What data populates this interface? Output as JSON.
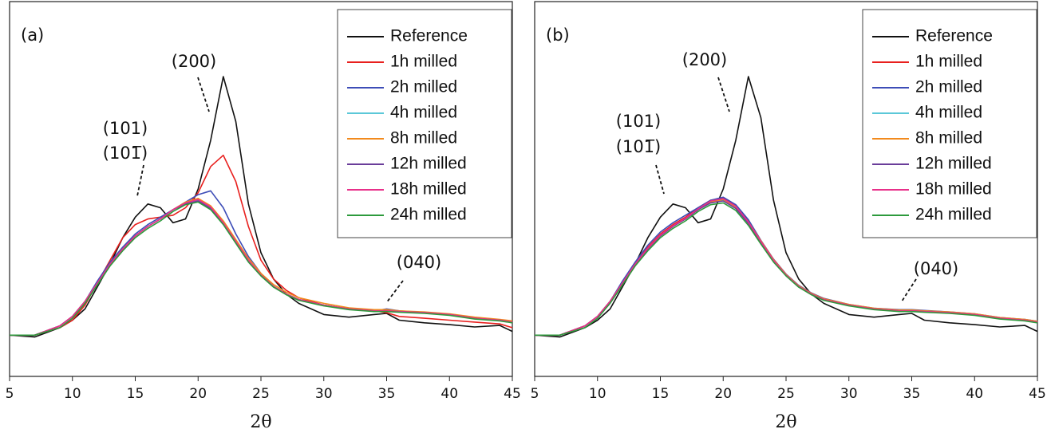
{
  "chart_data": [
    {
      "type": "line",
      "panel_label": "(a)",
      "xlabel": "2θ",
      "xlim": [
        5,
        45
      ],
      "xticks": [
        5,
        10,
        15,
        20,
        25,
        30,
        35,
        40,
        45
      ],
      "ylim": [
        0,
        100
      ],
      "legend": "upper right",
      "annotations": [
        "(200)",
        "(101)",
        "(101̅)",
        "(040)"
      ],
      "x": [
        5,
        7,
        9,
        10,
        11,
        12,
        13,
        14,
        15,
        16,
        17,
        18,
        19,
        20,
        21,
        22,
        23,
        24,
        25,
        26,
        27,
        28,
        30,
        32,
        34,
        35,
        36,
        38,
        40,
        42,
        44,
        45
      ],
      "series": [
        {
          "name": "Reference",
          "color": "#111111",
          "values": [
            11,
            10.5,
            13,
            15,
            18,
            24,
            30,
            37,
            42.5,
            46,
            45,
            41,
            42,
            50,
            63,
            80,
            68,
            46,
            33,
            26,
            22,
            19.5,
            16.5,
            15.8,
            16.5,
            16.8,
            15,
            14.3,
            13.8,
            13.2,
            13.6,
            12
          ]
        },
        {
          "name": "1h milled",
          "color": "#e8201e",
          "values": [
            11,
            11,
            13,
            15,
            19,
            25,
            31,
            37,
            40.5,
            42,
            42.5,
            43,
            45,
            49,
            56,
            59,
            52,
            40,
            31,
            26,
            23,
            21,
            19,
            18,
            17.5,
            17,
            16,
            15.5,
            15,
            14.5,
            14,
            13
          ]
        },
        {
          "name": "2h milled",
          "color": "#3d4db7",
          "values": [
            11,
            11,
            13.5,
            16,
            20,
            25.5,
            30.5,
            34.5,
            38,
            40.5,
            42.5,
            44.5,
            46.5,
            48.5,
            49.5,
            45,
            38,
            32,
            27.5,
            24,
            22,
            20.5,
            19,
            18,
            17.5,
            18,
            17.5,
            17,
            16.5,
            15.5,
            15,
            14.5
          ]
        },
        {
          "name": "4h milled",
          "color": "#5bc8d8",
          "values": [
            11,
            11,
            13.5,
            16,
            20,
            25,
            30,
            34,
            37.5,
            40,
            42,
            44.5,
            46,
            47,
            45,
            41,
            36,
            31,
            27,
            24,
            22,
            20.5,
            19,
            18,
            17.5,
            17.5,
            17.3,
            17,
            16.5,
            15.5,
            15,
            14.5
          ]
        },
        {
          "name": "8h milled",
          "color": "#f28a1d",
          "values": [
            11,
            11,
            13.5,
            16,
            20,
            25,
            30,
            34,
            37.5,
            40,
            42,
            44.5,
            46.5,
            47.5,
            45.5,
            41.5,
            36.5,
            31.5,
            27.5,
            24.5,
            22.5,
            21,
            19.5,
            18.3,
            17.8,
            17.8,
            17.5,
            17.2,
            16.7,
            15.8,
            15.2,
            14.8
          ]
        },
        {
          "name": "12h milled",
          "color": "#6a3d9a",
          "values": [
            11,
            11,
            13.5,
            16,
            20,
            25,
            30,
            34,
            37.5,
            40,
            42,
            44.5,
            46,
            46.8,
            44.8,
            40.8,
            35.8,
            30.8,
            27,
            24,
            22,
            20.5,
            19,
            18,
            17.5,
            17.5,
            17.3,
            17,
            16.5,
            15.5,
            15,
            14.5
          ]
        },
        {
          "name": "18h milled",
          "color": "#e8308a",
          "values": [
            11,
            11,
            13.5,
            16,
            20,
            25,
            30,
            34,
            37.5,
            40,
            42,
            44.5,
            46.3,
            47.2,
            45.2,
            41,
            36,
            31,
            27,
            24,
            22,
            20.5,
            19,
            18,
            17.5,
            17.5,
            17.3,
            17,
            16.5,
            15.5,
            15,
            14.5
          ]
        },
        {
          "name": "24h milled",
          "color": "#2d9a3c",
          "values": [
            11,
            11,
            13,
            15.5,
            19.5,
            24.5,
            29.5,
            33.5,
            37,
            39.5,
            41.5,
            44,
            45.8,
            46.5,
            44.5,
            40.5,
            35.5,
            30.5,
            26.8,
            23.8,
            21.8,
            20.3,
            18.8,
            17.8,
            17.3,
            17.3,
            17.1,
            16.8,
            16.3,
            15.3,
            14.8,
            14.3
          ]
        }
      ]
    },
    {
      "type": "line",
      "panel_label": "(b)",
      "xlabel": "2θ",
      "xlim": [
        5,
        45
      ],
      "xticks": [
        5,
        10,
        15,
        20,
        25,
        30,
        35,
        40,
        45
      ],
      "ylim": [
        0,
        100
      ],
      "legend": "upper right",
      "annotations": [
        "(200)",
        "(101)",
        "(101̅)",
        "(040)"
      ],
      "x": [
        5,
        7,
        9,
        10,
        11,
        12,
        13,
        14,
        15,
        16,
        17,
        18,
        19,
        20,
        21,
        22,
        23,
        24,
        25,
        26,
        27,
        28,
        30,
        32,
        34,
        35,
        36,
        38,
        40,
        42,
        44,
        45
      ],
      "series": [
        {
          "name": "Reference",
          "color": "#111111",
          "values": [
            11,
            10.5,
            13,
            15,
            18,
            24,
            30,
            37,
            42.5,
            46,
            45,
            41,
            42,
            50,
            63,
            80,
            69,
            47,
            33,
            26,
            22,
            19.5,
            16.5,
            15.8,
            16.5,
            16.8,
            15,
            14.3,
            13.8,
            13.2,
            13.6,
            12
          ]
        },
        {
          "name": "1h milled",
          "color": "#e8201e",
          "values": [
            11,
            11,
            13.5,
            16,
            20,
            25,
            30,
            34.5,
            38,
            40.5,
            42.5,
            45,
            47,
            47.5,
            45.5,
            41.5,
            36,
            31,
            27,
            24,
            22,
            20.5,
            19,
            18,
            17.5,
            17.5,
            17.3,
            17,
            16.5,
            15.5,
            15,
            14.5
          ]
        },
        {
          "name": "2h milled",
          "color": "#3d4db7",
          "values": [
            11,
            11,
            13.5,
            16,
            20,
            25.5,
            30.5,
            35,
            38.5,
            41,
            43,
            45,
            47,
            47.8,
            45.8,
            41.8,
            36.3,
            31.3,
            27.3,
            24.3,
            22.3,
            20.8,
            19.2,
            18.2,
            17.8,
            17.8,
            17.6,
            17.2,
            16.7,
            15.7,
            15.2,
            14.7
          ]
        },
        {
          "name": "4h milled",
          "color": "#5bc8d8",
          "values": [
            11,
            11,
            13.5,
            16,
            20,
            25,
            30,
            34,
            37.5,
            40,
            42,
            44.5,
            46.5,
            47,
            45,
            41,
            36,
            31,
            27,
            24,
            22,
            20.5,
            19,
            18,
            17.5,
            17.5,
            17.3,
            17,
            16.5,
            15.5,
            15,
            14.5
          ]
        },
        {
          "name": "8h milled",
          "color": "#f28a1d",
          "values": [
            11,
            11,
            13.5,
            16,
            20,
            25,
            30,
            34,
            37.5,
            40,
            42,
            44.5,
            46.5,
            47.2,
            45.2,
            41.2,
            36.2,
            31.2,
            27.2,
            24.2,
            22.2,
            20.7,
            19.2,
            18.2,
            17.7,
            17.7,
            17.5,
            17.2,
            16.7,
            15.7,
            15.2,
            14.7
          ]
        },
        {
          "name": "12h milled",
          "color": "#6a3d9a",
          "values": [
            11,
            11,
            13.5,
            16,
            20,
            25,
            30,
            34,
            37.5,
            40,
            42,
            44.5,
            46.3,
            46.8,
            44.8,
            40.8,
            35.8,
            30.8,
            27,
            24,
            22,
            20.5,
            19,
            18,
            17.5,
            17.5,
            17.3,
            17,
            16.5,
            15.5,
            15,
            14.5
          ]
        },
        {
          "name": "18h milled",
          "color": "#e8308a",
          "values": [
            11,
            11,
            13.5,
            16,
            20,
            25,
            30,
            34.2,
            37.7,
            40.2,
            42.2,
            44.7,
            46.8,
            47.4,
            45.4,
            41.2,
            36,
            31,
            27,
            24,
            22,
            20.5,
            19,
            18,
            17.5,
            17.5,
            17.3,
            17,
            16.5,
            15.5,
            15,
            14.5
          ]
        },
        {
          "name": "24h milled",
          "color": "#2d9a3c",
          "values": [
            11,
            11,
            13,
            15.5,
            19.5,
            24.5,
            29.5,
            33.5,
            37,
            39.5,
            41.5,
            44,
            45.8,
            46.3,
            44.3,
            40.3,
            35.3,
            30.5,
            26.8,
            23.8,
            21.8,
            20.3,
            18.8,
            17.8,
            17.3,
            17.3,
            17.1,
            16.8,
            16.3,
            15.3,
            14.8,
            14.3
          ]
        }
      ]
    }
  ]
}
